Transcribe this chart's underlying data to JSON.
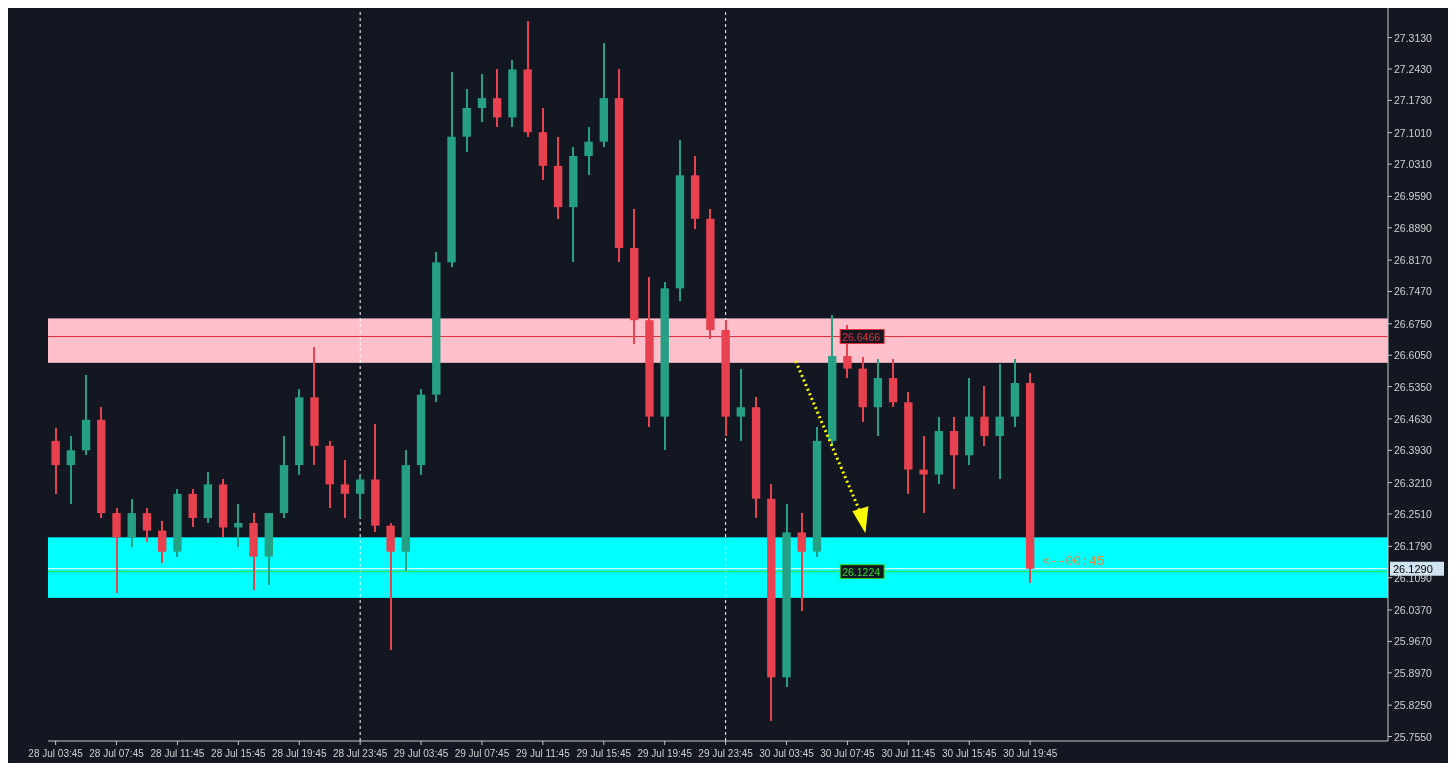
{
  "chart_data": {
    "type": "candlestick",
    "categories": [
      "28 Jul 03:45",
      null,
      null,
      null,
      "28 Jul 07:45",
      null,
      null,
      null,
      "28 Jul 11:45",
      null,
      null,
      null,
      "28 Jul 15:45",
      null,
      null,
      null,
      "28 Jul 19:45",
      null,
      null,
      null,
      "28 Jul 23:45",
      null,
      null,
      null,
      "29 Jul 03:45",
      null,
      null,
      null,
      "29 Jul 07:45",
      null,
      null,
      null,
      "29 Jul 11:45",
      null,
      null,
      null,
      "29 Jul 15:45",
      null,
      null,
      null,
      "29 Jul 19:45",
      null,
      null,
      null,
      "29 Jul 23:45",
      null,
      null,
      null,
      "30 Jul 03:45",
      null,
      null,
      null,
      "30 Jul 07:45",
      null,
      null,
      null,
      "30 Jul 11:45",
      null,
      null,
      null,
      "30 Jul 15:45",
      null,
      null,
      null,
      "30 Jul 19:45",
      null,
      null,
      null,
      null,
      null,
      null,
      null,
      null,
      null,
      null,
      null,
      null,
      null,
      null,
      null,
      null,
      null,
      null,
      null,
      null,
      null,
      null,
      null
    ],
    "ohlc": [
      [
        26.414,
        26.442,
        26.296,
        26.36
      ],
      [
        26.36,
        26.425,
        26.274,
        26.393
      ],
      [
        26.393,
        26.56,
        26.382,
        26.461
      ],
      [
        26.461,
        26.489,
        26.242,
        26.253
      ],
      [
        26.253,
        26.264,
        26.074,
        26.199
      ],
      [
        26.199,
        26.285,
        26.178,
        26.253
      ],
      [
        26.253,
        26.264,
        26.188,
        26.214
      ],
      [
        26.214,
        26.236,
        26.141,
        26.167
      ],
      [
        26.167,
        26.307,
        26.156,
        26.296
      ],
      [
        26.296,
        26.307,
        26.221,
        26.242
      ],
      [
        26.242,
        26.345,
        26.231,
        26.317
      ],
      [
        26.317,
        26.328,
        26.199,
        26.221
      ],
      [
        26.221,
        26.274,
        26.178,
        26.231
      ],
      [
        26.231,
        26.253,
        26.081,
        26.156
      ],
      [
        26.156,
        26.253,
        26.092,
        26.253
      ],
      [
        26.253,
        26.425,
        26.242,
        26.36
      ],
      [
        26.36,
        26.53,
        26.339,
        26.511
      ],
      [
        26.511,
        26.623,
        26.36,
        26.403
      ],
      [
        26.403,
        26.414,
        26.264,
        26.317
      ],
      [
        26.317,
        26.371,
        26.242,
        26.296
      ],
      [
        26.296,
        26.339,
        26.242,
        26.328
      ],
      [
        26.328,
        26.451,
        26.21,
        26.225
      ],
      [
        26.225,
        26.231,
        25.947,
        26.167
      ],
      [
        26.167,
        26.393,
        26.124,
        26.36
      ],
      [
        26.36,
        26.53,
        26.339,
        26.517
      ],
      [
        26.517,
        26.834,
        26.5,
        26.812
      ],
      [
        26.812,
        27.236,
        26.801,
        27.092
      ],
      [
        27.092,
        27.199,
        27.059,
        27.156
      ],
      [
        27.156,
        27.231,
        27.124,
        27.178
      ],
      [
        27.178,
        27.242,
        27.113,
        27.135
      ],
      [
        27.135,
        27.264,
        27.113,
        27.242
      ],
      [
        27.242,
        27.35,
        27.092,
        27.102
      ],
      [
        27.102,
        27.156,
        26.995,
        27.027
      ],
      [
        27.027,
        27.092,
        26.909,
        26.935
      ],
      [
        26.935,
        27.07,
        26.812,
        27.049
      ],
      [
        27.049,
        27.113,
        27.006,
        27.081
      ],
      [
        27.081,
        27.3,
        27.07,
        27.178
      ],
      [
        27.178,
        27.242,
        26.812,
        26.844
      ],
      [
        26.844,
        26.93,
        26.629,
        26.683
      ],
      [
        26.683,
        26.78,
        26.446,
        26.468
      ],
      [
        26.468,
        26.769,
        26.393,
        26.754
      ],
      [
        26.754,
        27.085,
        26.726,
        27.006
      ],
      [
        27.006,
        27.049,
        26.887,
        26.909
      ],
      [
        26.909,
        26.93,
        26.64,
        26.661
      ],
      [
        26.661,
        26.683,
        26.425,
        26.468
      ],
      [
        26.468,
        26.575,
        26.414,
        26.489
      ],
      [
        26.489,
        26.511,
        26.242,
        26.285
      ],
      [
        26.285,
        26.317,
        25.79,
        25.887
      ],
      [
        25.887,
        26.274,
        25.866,
        26.21
      ],
      [
        26.21,
        26.253,
        26.034,
        26.167
      ],
      [
        26.167,
        26.446,
        26.156,
        26.414
      ],
      [
        26.414,
        26.694,
        26.403,
        26.603
      ],
      [
        26.603,
        26.672,
        26.554,
        26.575
      ],
      [
        26.575,
        26.601,
        26.457,
        26.489
      ],
      [
        26.489,
        26.597,
        26.425,
        26.554
      ],
      [
        26.554,
        26.597,
        26.489,
        26.5
      ],
      [
        26.5,
        26.522,
        26.296,
        26.35
      ],
      [
        26.35,
        26.425,
        26.253,
        26.339
      ],
      [
        26.339,
        26.468,
        26.317,
        26.436
      ],
      [
        26.436,
        26.468,
        26.307,
        26.382
      ],
      [
        26.382,
        26.554,
        26.36,
        26.468
      ],
      [
        26.468,
        26.537,
        26.403,
        26.425
      ],
      [
        26.425,
        26.586,
        26.328,
        26.468
      ],
      [
        26.468,
        26.597,
        26.446,
        26.543
      ],
      [
        26.543,
        26.565,
        26.098,
        26.129
      ],
      null,
      null,
      null,
      null,
      null,
      null,
      null,
      null,
      null,
      null,
      null,
      null,
      null,
      null,
      null,
      null,
      null,
      null,
      null,
      null,
      null,
      null,
      null
    ],
    "ylim": [
      25.745,
      27.37
    ],
    "yticks": [
      {
        "value": 27.313,
        "label": "27.3130"
      },
      {
        "value": 27.243,
        "label": "27.2430"
      },
      {
        "value": 27.173,
        "label": "27.1730"
      },
      {
        "value": 27.101,
        "label": "27.1010"
      },
      {
        "value": 27.031,
        "label": "27.0310"
      },
      {
        "value": 26.959,
        "label": "26.9590"
      },
      {
        "value": 26.889,
        "label": "26.8890"
      },
      {
        "value": 26.817,
        "label": "26.8170"
      },
      {
        "value": 26.747,
        "label": "26.7470"
      },
      {
        "value": 26.675,
        "label": "26.6750"
      },
      {
        "value": 26.605,
        "label": "26.6050"
      },
      {
        "value": 26.535,
        "label": "26.5350"
      },
      {
        "value": 26.463,
        "label": "26.4630"
      },
      {
        "value": 26.393,
        "label": "26.3930"
      },
      {
        "value": 26.321,
        "label": "26.3210"
      },
      {
        "value": 26.251,
        "label": "26.2510"
      },
      {
        "value": 26.179,
        "label": "26.1790"
      },
      {
        "value": 26.109,
        "label": "26.1090"
      },
      {
        "value": 26.037,
        "label": "26.0370"
      },
      {
        "value": 25.967,
        "label": "25.9670"
      },
      {
        "value": 25.897,
        "label": "25.8970"
      },
      {
        "value": 25.825,
        "label": "25.8250"
      },
      {
        "value": 25.755,
        "label": "25.7550"
      }
    ],
    "bands": [
      {
        "axis": "y",
        "from": 26.588,
        "to": 26.687,
        "color": "#ffc0cb"
      },
      {
        "axis": "y",
        "from": 26.064,
        "to": 26.199,
        "color": "#00ffff"
      }
    ],
    "ref_lines": [
      {
        "axis": "x",
        "value": "28 Jul 23:45",
        "color": "#ffffff",
        "line_style": "dashed"
      },
      {
        "axis": "x",
        "value": "29 Jul 23:45",
        "color": "#ffffff",
        "line_style": "dashed"
      },
      {
        "axis": "y",
        "value": 26.6466,
        "label": "26.6466",
        "color": "#e0303a"
      },
      {
        "axis": "y",
        "value": 26.1224,
        "label": "26.1224",
        "color": "#33dd33"
      },
      {
        "axis": "y",
        "value": 26.129,
        "label": "26.1290",
        "color": "#ffffff"
      }
    ],
    "annotations": [
      {
        "text": "<--00:45",
        "y": 26.129
      }
    ]
  }
}
